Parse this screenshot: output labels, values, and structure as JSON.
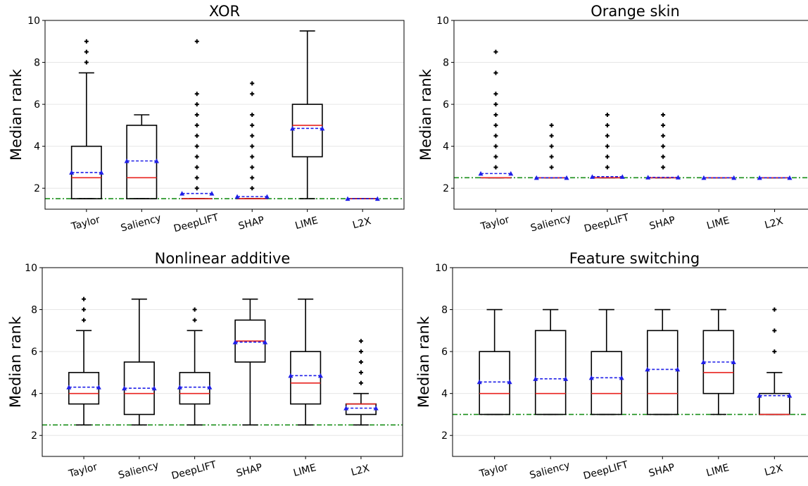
{
  "chart_data": [
    {
      "type": "box",
      "title": "XOR",
      "ylabel": "Median rank",
      "ylim": [
        1,
        10
      ],
      "yticks": [
        2,
        4,
        6,
        8,
        10
      ],
      "grid": true,
      "reference_line": 1.5,
      "categories": [
        "Taylor",
        "Saliency",
        "DeepLIFT",
        "SHAP",
        "LIME",
        "L2X"
      ],
      "boxes": [
        {
          "whislo": 1.5,
          "q1": 1.5,
          "med": 2.5,
          "q3": 4.0,
          "whishi": 7.5,
          "mean": 2.75,
          "fliers": [
            8.0,
            8.5,
            9.0
          ]
        },
        {
          "whislo": 1.5,
          "q1": 1.5,
          "med": 2.5,
          "q3": 5.0,
          "whishi": 5.5,
          "mean": 3.3,
          "fliers": []
        },
        {
          "whislo": 1.5,
          "q1": 1.5,
          "med": 1.5,
          "q3": 1.5,
          "whishi": 1.5,
          "mean": 1.75,
          "fliers": [
            2.0,
            2.5,
            3.0,
            3.5,
            4.0,
            4.5,
            5.0,
            5.5,
            6.0,
            6.5,
            9.0
          ]
        },
        {
          "whislo": 1.5,
          "q1": 1.5,
          "med": 1.5,
          "q3": 1.5,
          "whishi": 1.5,
          "mean": 1.6,
          "fliers": [
            2.0,
            2.5,
            3.0,
            3.5,
            4.0,
            4.5,
            5.0,
            5.5,
            6.5,
            7.0
          ]
        },
        {
          "whislo": 1.5,
          "q1": 3.5,
          "med": 5.0,
          "q3": 6.0,
          "whishi": 9.5,
          "mean": 4.85,
          "fliers": []
        },
        {
          "whislo": 1.5,
          "q1": 1.5,
          "med": 1.5,
          "q3": 1.5,
          "whishi": 1.5,
          "mean": 1.5,
          "fliers": []
        }
      ]
    },
    {
      "type": "box",
      "title": "Orange skin",
      "ylabel": "Median rank",
      "ylim": [
        1,
        10
      ],
      "yticks": [
        2,
        4,
        6,
        8,
        10
      ],
      "grid": true,
      "reference_line": 2.5,
      "categories": [
        "Taylor",
        "Saliency",
        "DeepLIFT",
        "SHAP",
        "LIME",
        "L2X"
      ],
      "boxes": [
        {
          "whislo": 2.5,
          "q1": 2.5,
          "med": 2.5,
          "q3": 2.5,
          "whishi": 2.5,
          "mean": 2.7,
          "fliers": [
            3.0,
            3.5,
            4.0,
            4.5,
            5.0,
            5.5,
            6.0,
            6.5,
            7.5,
            8.5
          ]
        },
        {
          "whislo": 2.5,
          "q1": 2.5,
          "med": 2.5,
          "q3": 2.5,
          "whishi": 2.5,
          "mean": 2.5,
          "fliers": [
            3.0,
            3.5,
            4.0,
            4.5,
            5.0
          ]
        },
        {
          "whislo": 2.5,
          "q1": 2.5,
          "med": 2.5,
          "q3": 2.5,
          "whishi": 2.5,
          "mean": 2.55,
          "fliers": [
            3.0,
            3.5,
            4.0,
            4.5,
            5.0,
            5.5
          ]
        },
        {
          "whislo": 2.5,
          "q1": 2.5,
          "med": 2.5,
          "q3": 2.5,
          "whishi": 2.5,
          "mean": 2.52,
          "fliers": [
            3.0,
            3.5,
            4.0,
            4.5,
            5.0,
            5.5
          ]
        },
        {
          "whislo": 2.5,
          "q1": 2.5,
          "med": 2.5,
          "q3": 2.5,
          "whishi": 2.5,
          "mean": 2.5,
          "fliers": []
        },
        {
          "whislo": 2.5,
          "q1": 2.5,
          "med": 2.5,
          "q3": 2.5,
          "whishi": 2.5,
          "mean": 2.5,
          "fliers": []
        }
      ]
    },
    {
      "type": "box",
      "title": "Nonlinear additive",
      "ylabel": "Median rank",
      "ylim": [
        1,
        10
      ],
      "yticks": [
        2,
        4,
        6,
        8,
        10
      ],
      "grid": true,
      "reference_line": 2.5,
      "categories": [
        "Taylor",
        "Saliency",
        "DeepLIFT",
        "SHAP",
        "LIME",
        "L2X"
      ],
      "boxes": [
        {
          "whislo": 2.5,
          "q1": 3.5,
          "med": 4.0,
          "q3": 5.0,
          "whishi": 7.0,
          "mean": 4.3,
          "fliers": [
            7.5,
            8.0,
            8.5
          ]
        },
        {
          "whislo": 2.5,
          "q1": 3.0,
          "med": 4.0,
          "q3": 5.5,
          "whishi": 8.5,
          "mean": 4.25,
          "fliers": []
        },
        {
          "whislo": 2.5,
          "q1": 3.5,
          "med": 4.0,
          "q3": 5.0,
          "whishi": 7.0,
          "mean": 4.3,
          "fliers": [
            7.5,
            8.0
          ]
        },
        {
          "whislo": 2.5,
          "q1": 5.5,
          "med": 6.5,
          "q3": 7.5,
          "whishi": 8.5,
          "mean": 6.45,
          "fliers": []
        },
        {
          "whislo": 2.5,
          "q1": 3.5,
          "med": 4.5,
          "q3": 6.0,
          "whishi": 8.5,
          "mean": 4.85,
          "fliers": []
        },
        {
          "whislo": 2.5,
          "q1": 3.0,
          "med": 3.5,
          "q3": 3.5,
          "whishi": 4.0,
          "mean": 3.3,
          "fliers": [
            4.5,
            5.0,
            5.5,
            6.0,
            6.5
          ]
        }
      ]
    },
    {
      "type": "box",
      "title": "Feature switching",
      "ylabel": "Median rank",
      "ylim": [
        1,
        10
      ],
      "yticks": [
        2,
        4,
        6,
        8,
        10
      ],
      "grid": true,
      "reference_line": 3.0,
      "categories": [
        "Taylor",
        "Saliency",
        "DeepLIFT",
        "SHAP",
        "LIME",
        "L2X"
      ],
      "boxes": [
        {
          "whislo": 3.0,
          "q1": 3.0,
          "med": 4.0,
          "q3": 6.0,
          "whishi": 8.0,
          "mean": 4.55,
          "fliers": []
        },
        {
          "whislo": 3.0,
          "q1": 3.0,
          "med": 4.0,
          "q3": 7.0,
          "whishi": 8.0,
          "mean": 4.7,
          "fliers": []
        },
        {
          "whislo": 3.0,
          "q1": 3.0,
          "med": 4.0,
          "q3": 6.0,
          "whishi": 8.0,
          "mean": 4.75,
          "fliers": []
        },
        {
          "whislo": 3.0,
          "q1": 3.0,
          "med": 4.0,
          "q3": 7.0,
          "whishi": 8.0,
          "mean": 5.15,
          "fliers": []
        },
        {
          "whislo": 3.0,
          "q1": 4.0,
          "med": 5.0,
          "q3": 7.0,
          "whishi": 8.0,
          "mean": 5.5,
          "fliers": []
        },
        {
          "whislo": 3.0,
          "q1": 3.0,
          "med": 3.0,
          "q3": 4.0,
          "whishi": 5.0,
          "mean": 3.9,
          "fliers": [
            6.0,
            7.0,
            8.0
          ]
        }
      ]
    }
  ],
  "colors": {
    "median": "#e8231f",
    "mean": "#1f1fe8",
    "reference": "#1a8f1a",
    "box": "#000000",
    "grid": "#e6e6e6"
  }
}
